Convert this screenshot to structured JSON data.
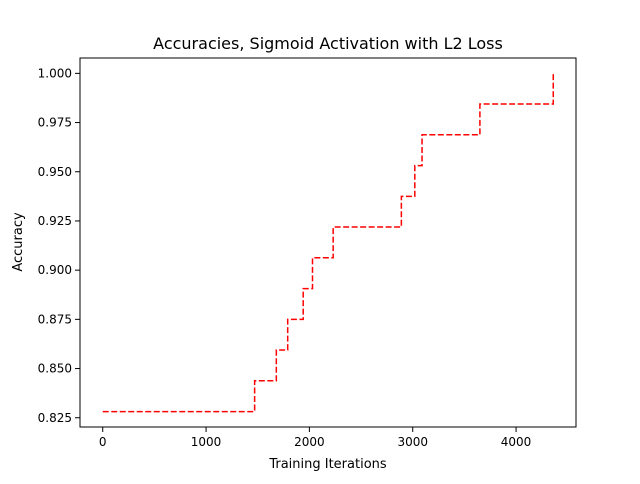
{
  "chart_data": {
    "type": "line",
    "title": "Accuracies, Sigmoid Activation with L2 Loss",
    "xlabel": "Training Iterations",
    "ylabel": "Accuracy",
    "xlim": [
      -220,
      4580
    ],
    "ylim": [
      0.8203,
      1.0078
    ],
    "xticks": [
      0,
      1000,
      2000,
      3000,
      4000
    ],
    "xtick_labels": [
      "0",
      "1000",
      "2000",
      "3000",
      "4000"
    ],
    "yticks": [
      0.825,
      0.85,
      0.875,
      0.9,
      0.925,
      0.95,
      0.975,
      1.0
    ],
    "ytick_labels": [
      "0.825",
      "0.850",
      "0.875",
      "0.900",
      "0.925",
      "0.950",
      "0.975",
      "1.000"
    ],
    "grid": false,
    "series": [
      {
        "style": "dashed",
        "color": "#ff0000",
        "drawstyle": "steps-post",
        "points": [
          [
            0,
            0.8281
          ],
          [
            1470,
            0.8438
          ],
          [
            1680,
            0.8594
          ],
          [
            1790,
            0.875
          ],
          [
            1940,
            0.8906
          ],
          [
            2030,
            0.9063
          ],
          [
            2230,
            0.9219
          ],
          [
            2890,
            0.9375
          ],
          [
            3020,
            0.9531
          ],
          [
            3090,
            0.9688
          ],
          [
            3650,
            0.9844
          ],
          [
            4360,
            1.0
          ]
        ]
      }
    ]
  }
}
